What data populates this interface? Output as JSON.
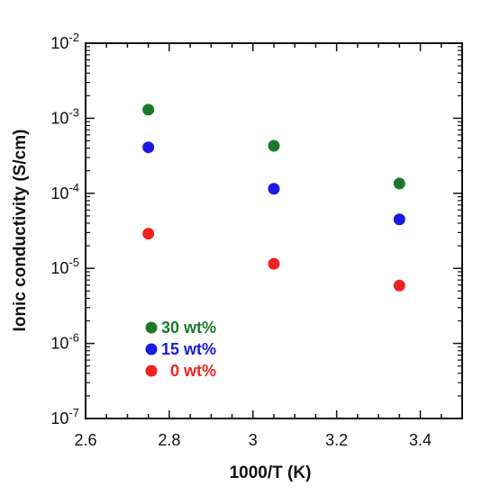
{
  "chart_data": {
    "type": "scatter",
    "xlabel": "1000/T (K)",
    "ylabel": "Ionic conductivity (S/cm)",
    "xlim": [
      2.6,
      3.5
    ],
    "ylim": [
      1e-07,
      0.01
    ],
    "yscale": "log",
    "x_ticks": [
      "2.6",
      "2.8",
      "3",
      "3.2",
      "3.4"
    ],
    "x_tick_values": [
      2.6,
      2.8,
      3.0,
      3.2,
      3.4
    ],
    "y_tick_values": [
      1e-07,
      1e-06,
      1e-05,
      0.0001,
      0.001,
      0.01
    ],
    "y_tick_mantissa": "10",
    "y_tick_exponents": [
      "-7",
      "-6",
      "-5",
      "-4",
      "-3",
      "-2"
    ],
    "grid": false,
    "legend_position": "lower-left",
    "series": [
      {
        "name": "30 wt%",
        "color": "#1a7a2a",
        "x": [
          2.75,
          3.05,
          3.35
        ],
        "y": [
          0.0013,
          0.00043,
          0.000135
        ]
      },
      {
        "name": "15 wt%",
        "color": "#1a1ae0",
        "x": [
          2.75,
          3.05,
          3.35
        ],
        "y": [
          0.00041,
          0.000115,
          4.5e-05
        ]
      },
      {
        "name": "0 wt%",
        "color": "#ee2222",
        "x": [
          2.75,
          3.05,
          3.35
        ],
        "y": [
          2.9e-05,
          1.15e-05,
          5.9e-06
        ]
      }
    ]
  }
}
